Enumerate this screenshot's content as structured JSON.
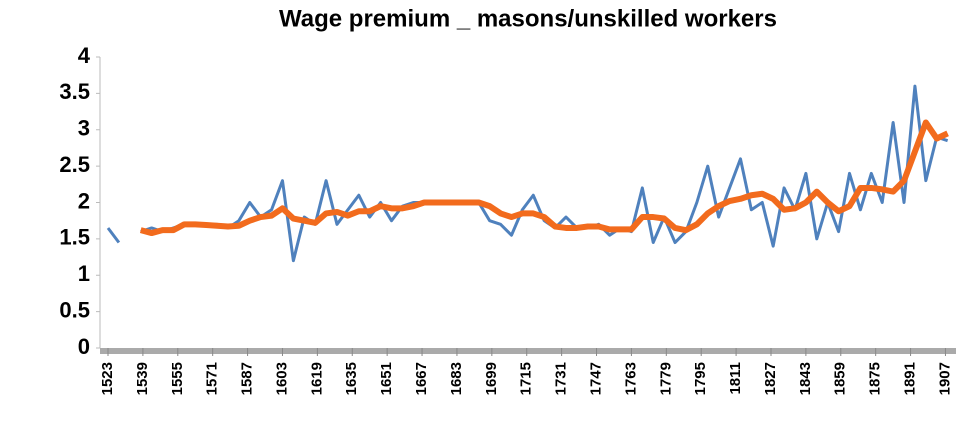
{
  "chart_data": {
    "type": "line",
    "title": "Wage premium _ masons/unskilled workers",
    "x": [
      1523,
      1528,
      1533,
      1538,
      1543,
      1548,
      1553,
      1558,
      1563,
      1568,
      1573,
      1578,
      1583,
      1588,
      1593,
      1598,
      1603,
      1608,
      1613,
      1618,
      1623,
      1628,
      1633,
      1638,
      1643,
      1648,
      1653,
      1658,
      1663,
      1668,
      1673,
      1678,
      1683,
      1688,
      1693,
      1698,
      1703,
      1708,
      1713,
      1718,
      1723,
      1728,
      1733,
      1738,
      1743,
      1748,
      1753,
      1758,
      1763,
      1768,
      1773,
      1778,
      1783,
      1788,
      1793,
      1798,
      1803,
      1808,
      1813,
      1818,
      1823,
      1828,
      1833,
      1838,
      1843,
      1848,
      1853,
      1858,
      1863,
      1868,
      1873,
      1878,
      1883,
      1888,
      1893,
      1898,
      1903,
      1908
    ],
    "series": [
      {
        "color": "#4f81bd",
        "values": [
          1.65,
          1.45,
          null,
          1.6,
          1.65,
          1.6,
          1.65,
          1.7,
          1.7,
          1.7,
          1.7,
          1.65,
          1.75,
          2.0,
          1.8,
          1.9,
          2.3,
          1.2,
          1.8,
          1.7,
          2.3,
          1.7,
          1.9,
          2.1,
          1.8,
          2.0,
          1.75,
          1.95,
          2.0,
          2.0,
          2.0,
          2.0,
          2.0,
          2.0,
          2.0,
          1.75,
          1.7,
          1.55,
          1.9,
          2.1,
          1.75,
          1.65,
          1.8,
          1.65,
          1.65,
          1.7,
          1.55,
          1.65,
          1.6,
          2.2,
          1.45,
          1.8,
          1.45,
          1.6,
          2.0,
          2.5,
          1.8,
          2.2,
          2.6,
          1.9,
          2.0,
          1.4,
          2.2,
          1.9,
          2.4,
          1.5,
          2.0,
          1.6,
          2.4,
          1.9,
          2.4,
          2.0,
          3.1,
          2.0,
          3.6,
          2.3,
          2.9,
          2.85
        ]
      },
      {
        "color": "#f26b1d",
        "values": [
          null,
          null,
          null,
          1.62,
          1.58,
          1.62,
          1.62,
          1.7,
          1.7,
          1.69,
          1.68,
          1.67,
          1.68,
          1.75,
          1.8,
          1.82,
          1.92,
          1.78,
          1.75,
          1.72,
          1.85,
          1.87,
          1.82,
          1.88,
          1.88,
          1.95,
          1.92,
          1.92,
          1.95,
          2.0,
          2.0,
          2.0,
          2.0,
          2.0,
          2.0,
          1.95,
          1.85,
          1.8,
          1.85,
          1.85,
          1.8,
          1.67,
          1.65,
          1.65,
          1.67,
          1.67,
          1.63,
          1.63,
          1.63,
          1.8,
          1.8,
          1.78,
          1.65,
          1.62,
          1.7,
          1.85,
          1.95,
          2.02,
          2.05,
          2.1,
          2.12,
          2.05,
          1.9,
          1.92,
          2.0,
          2.15,
          2.0,
          1.88,
          1.95,
          2.2,
          2.2,
          2.18,
          2.15,
          2.3,
          2.7,
          3.1,
          2.88,
          2.95
        ]
      }
    ],
    "xlim": [
      1523,
      1910
    ],
    "xticks": [
      1523,
      1539,
      1555,
      1571,
      1587,
      1603,
      1619,
      1635,
      1651,
      1667,
      1683,
      1699,
      1715,
      1731,
      1747,
      1763,
      1779,
      1795,
      1811,
      1827,
      1843,
      1859,
      1875,
      1891,
      1907
    ],
    "ylim": [
      0,
      4
    ],
    "yticks": [
      0,
      0.5,
      1,
      1.5,
      2,
      2.5,
      3,
      3.5,
      4
    ]
  }
}
